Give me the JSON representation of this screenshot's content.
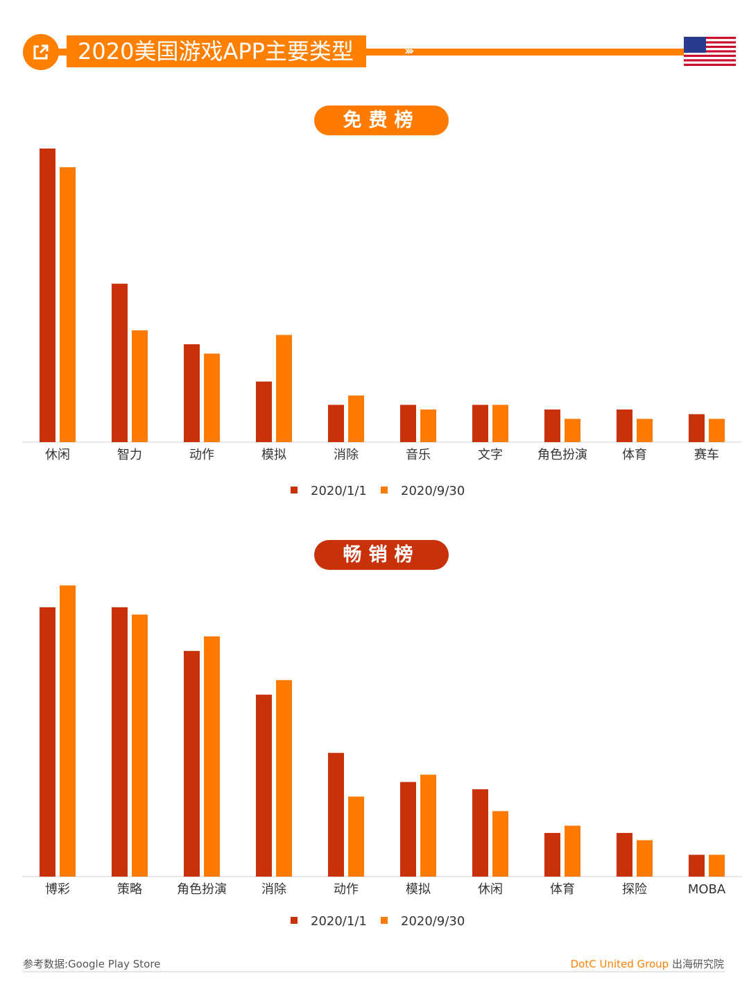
{
  "header": {
    "title": "2020美国游戏APP主要类型",
    "icon": "share-icon",
    "flag": "us-flag"
  },
  "colors": {
    "accent": "#ff8000",
    "series1": "#c8320a",
    "series2": "#ff7b00",
    "pill_free": "#ff7b00",
    "pill_grossing": "#c8320a"
  },
  "chart_data": [
    {
      "type": "bar",
      "title": "免费榜",
      "categories": [
        "休闲",
        "智力",
        "动作",
        "模拟",
        "消除",
        "音乐",
        "文字",
        "角色扮演",
        "体育",
        "赛车"
      ],
      "series": [
        {
          "name": "2020/1/1",
          "values": [
            63,
            34,
            21,
            13,
            8,
            8,
            8,
            7,
            7,
            6
          ]
        },
        {
          "name": "2020/9/30",
          "values": [
            59,
            24,
            19,
            23,
            10,
            7,
            8,
            5,
            5,
            5
          ]
        }
      ],
      "ylim": [
        0,
        70
      ],
      "grid": false,
      "legend": "bottom"
    },
    {
      "type": "bar",
      "title": "畅销榜",
      "categories": [
        "博彩",
        "策略",
        "角色扮演",
        "消除",
        "动作",
        "模拟",
        "休闲",
        "体育",
        "探险",
        "MOBA"
      ],
      "series": [
        {
          "name": "2020/1/1",
          "values": [
            37,
            37,
            31,
            25,
            17,
            13,
            12,
            6,
            6,
            3
          ]
        },
        {
          "name": "2020/9/30",
          "values": [
            40,
            36,
            33,
            27,
            11,
            14,
            9,
            7,
            5,
            3
          ]
        }
      ],
      "ylim": [
        0,
        45
      ],
      "grid": false,
      "legend": "bottom"
    }
  ],
  "footer": {
    "source": "参考数据:Google Play Store",
    "brand": "DotC United Group",
    "org": "出海研究院"
  }
}
